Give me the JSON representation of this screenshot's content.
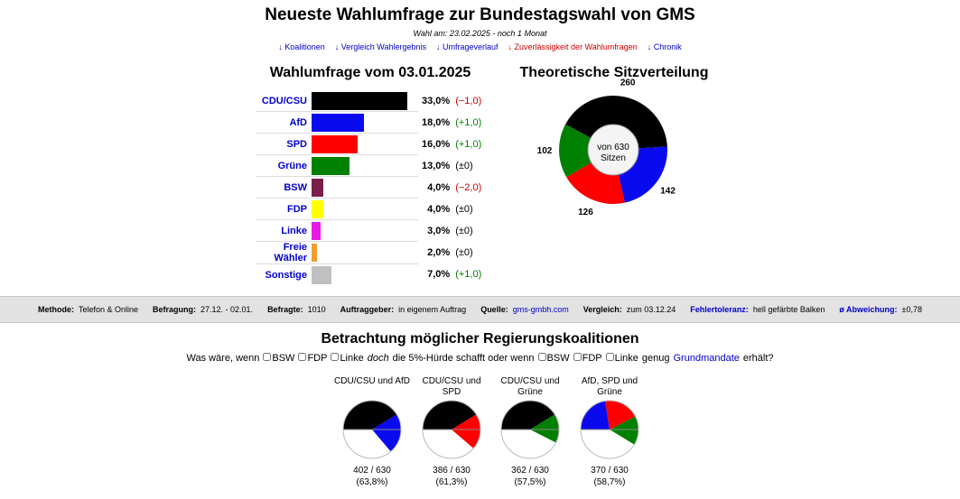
{
  "header": {
    "title": "Neueste Wahlumfrage zur Bundestagswahl von GMS",
    "subtitle": "Wahl am: 23.02.2025 - noch 1 Monat",
    "links": [
      {
        "text": "↓ Koalitionen",
        "color": "#0000cc"
      },
      {
        "text": "↓ Vergleich Wahlergebnis",
        "color": "#0000cc"
      },
      {
        "text": "↓ Umfrageverlauf",
        "color": "#0000cc"
      },
      {
        "text": "↓ Zuverlässigkeit der Wahlumfragen",
        "color": "#cc0000"
      },
      {
        "text": "↓ Chronik",
        "color": "#0000cc"
      }
    ]
  },
  "poll": {
    "title": "Wahlumfrage vom 03.01.2025",
    "parties": [
      {
        "name": "CDU/CSU",
        "color": "#000000",
        "value": 33,
        "value_label": "33,0%",
        "change": "(−1,0)",
        "change_color": "#cc0000"
      },
      {
        "name": "AfD",
        "color": "#0a0af0",
        "value": 18,
        "value_label": "18,0%",
        "change": "(+1,0)",
        "change_color": "#008000"
      },
      {
        "name": "SPD",
        "color": "#ff0000",
        "value": 16,
        "value_label": "16,0%",
        "change": "(+1,0)",
        "change_color": "#008000"
      },
      {
        "name": "Grüne",
        "color": "#008000",
        "value": 13,
        "value_label": "13,0%",
        "change": "(±0)",
        "change_color": "#000000"
      },
      {
        "name": "BSW",
        "color": "#7a1f4a",
        "value": 4,
        "value_label": "4,0%",
        "change": "(−2,0)",
        "change_color": "#cc0000"
      },
      {
        "name": "FDP",
        "color": "#ffff00",
        "value": 4,
        "value_label": "4,0%",
        "change": "(±0)",
        "change_color": "#000000"
      },
      {
        "name": "Linke",
        "color": "#e619e6",
        "value": 3,
        "value_label": "3,0%",
        "change": "(±0)",
        "change_color": "#000000"
      },
      {
        "name": "Freie Wähler",
        "color": "#f0a030",
        "value": 2,
        "value_label": "2,0%",
        "change": "(±0)",
        "change_color": "#000000"
      },
      {
        "name": "Sonstige",
        "color": "#c0c0c0",
        "value": 7,
        "value_label": "7,0%",
        "change": "(+1,0)",
        "change_color": "#008000"
      }
    ]
  },
  "seats": {
    "title": "Theoretische Sitzverteilung",
    "center": "von 630 Sitzen",
    "values": [
      260,
      142,
      126,
      102
    ],
    "colors": [
      "#000000",
      "#0a0af0",
      "#ff0000",
      "#008000"
    ]
  },
  "method": {
    "items": [
      {
        "label": "Methode:",
        "value": "Telefon & Online"
      },
      {
        "label": "Befragung:",
        "value": "27.12. - 02.01."
      },
      {
        "label": "Befragte:",
        "value": "1010"
      },
      {
        "label": "Auftraggeber:",
        "value": "in eigenem Auftrag"
      },
      {
        "label": "Quelle:",
        "value": "gms-gmbh.com",
        "value_color": "#0000cc"
      },
      {
        "label": "Vergleich:",
        "value": "zum 03.12.24"
      },
      {
        "label": "Fehlertoleranz:",
        "value": "hell gefärbte Balken",
        "label_color": "#0000cc"
      },
      {
        "label": "ø Abweichung:",
        "value": "±0,78",
        "label_color": "#0000cc"
      }
    ]
  },
  "coalitions": {
    "title": "Betrachtung möglicher Regierungskoalitionen",
    "total": 630,
    "question": [
      {
        "text": "Was wäre, wenn"
      },
      {
        "checkbox": "BSW"
      },
      {
        "checkbox": "FDP"
      },
      {
        "checkbox": "Linke"
      },
      {
        "text": "doch",
        "italic": true
      },
      {
        "text": "die 5%-Hürde schafft oder wenn"
      },
      {
        "checkbox": "BSW"
      },
      {
        "checkbox": "FDP"
      },
      {
        "checkbox": "Linke"
      },
      {
        "text": "genug"
      },
      {
        "text": "Grundmandate",
        "color": "#0000cc"
      },
      {
        "text": "erhält?"
      }
    ],
    "items": [
      {
        "name": "CDU/CSU und AfD",
        "parts": [
          260,
          142
        ],
        "colors": [
          "#000000",
          "#0a0af0"
        ],
        "seats_label": "402 / 630",
        "share_label": "(63,8%)"
      },
      {
        "name": "CDU/CSU und SPD",
        "parts": [
          260,
          126
        ],
        "colors": [
          "#000000",
          "#ff0000"
        ],
        "seats_label": "386 / 630",
        "share_label": "(61,3%)"
      },
      {
        "name": "CDU/CSU und Grüne",
        "parts": [
          260,
          102
        ],
        "colors": [
          "#000000",
          "#008000"
        ],
        "seats_label": "362 / 630",
        "share_label": "(57,5%)"
      },
      {
        "name": "AfD, SPD und Grüne",
        "parts": [
          142,
          126,
          102
        ],
        "colors": [
          "#0a0af0",
          "#ff0000",
          "#008000"
        ],
        "seats_label": "370 / 630",
        "share_label": "(58,7%)"
      }
    ]
  }
}
